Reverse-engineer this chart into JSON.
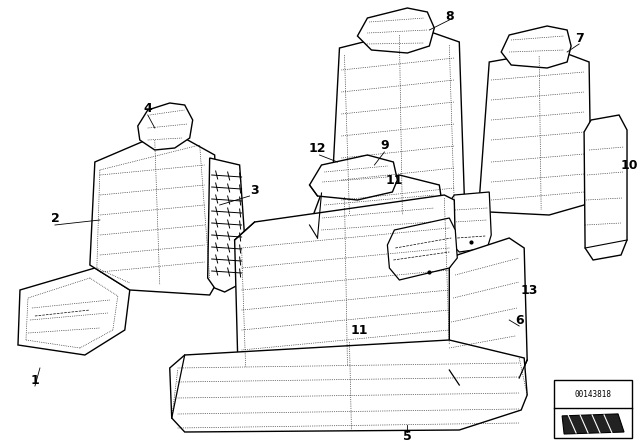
{
  "background_color": "#ffffff",
  "line_color": "#000000",
  "part_number": "00143818",
  "figsize": [
    6.4,
    4.48
  ],
  "dpi": 100,
  "label_fontsize": 9,
  "label_bold": true
}
